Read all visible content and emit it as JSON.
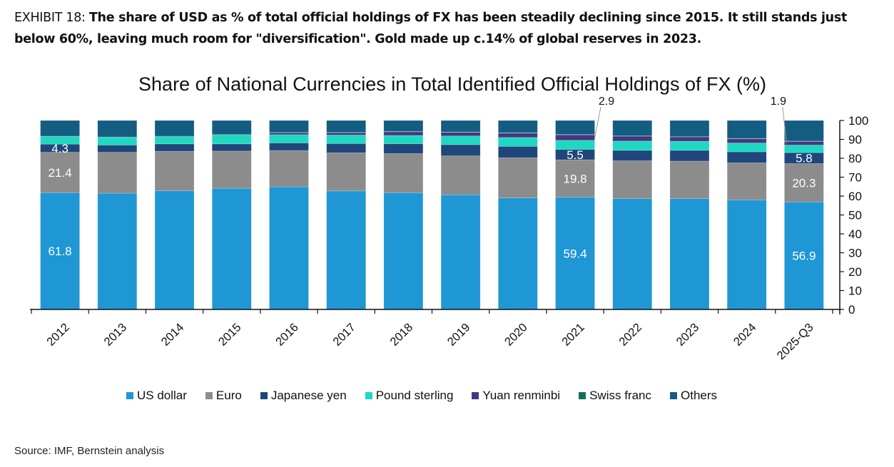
{
  "exhibit": {
    "label": "EXHIBIT 18: ",
    "headline": "The share of USD as % of total official holdings of FX has been steadily declining since 2015. It still stands just below 60%, leaving much room for \"diversification\". Gold made up c.14% of global reserves in 2023."
  },
  "source": "Source: IMF, Bernstein analysis",
  "colors": {
    "US dollar": "#1f97d4",
    "Euro": "#8c8c8c",
    "Japanese yen": "#1f477b",
    "Pound sterling": "#1fd8c2",
    "Yuan renminbi": "#46367f",
    "Swiss franc": "#12705a",
    "Others": "#135c82"
  },
  "chart_data": {
    "type": "bar",
    "stacked": true,
    "title": "Share of National Currencies in Total Identified Official Holdings of FX (%)",
    "xlabel": "",
    "ylabel": "",
    "ylim": [
      0,
      100
    ],
    "yticks": [
      0,
      10,
      20,
      30,
      40,
      50,
      60,
      70,
      80,
      90,
      100
    ],
    "y_axis_side": "right",
    "categories": [
      "2012",
      "2013",
      "2014",
      "2015",
      "2016",
      "2017",
      "2018",
      "2019",
      "2020",
      "2021",
      "2022",
      "2023",
      "2024",
      "2025-Q3"
    ],
    "series": [
      {
        "name": "US dollar",
        "values": [
          61.8,
          61.5,
          62.8,
          64.1,
          64.9,
          62.7,
          61.8,
          60.7,
          59.0,
          59.4,
          58.6,
          58.6,
          58.0,
          56.9
        ]
      },
      {
        "name": "Euro",
        "values": [
          21.4,
          21.7,
          20.9,
          19.7,
          19.2,
          20.2,
          20.7,
          20.6,
          21.3,
          19.8,
          20.1,
          19.9,
          19.6,
          20.3
        ]
      },
      {
        "name": "Japanese yen",
        "values": [
          4.3,
          3.8,
          3.9,
          3.8,
          4.0,
          4.9,
          5.2,
          5.9,
          6.0,
          5.5,
          5.5,
          5.7,
          5.8,
          5.8
        ]
      },
      {
        "name": "Pound sterling",
        "values": [
          4.0,
          4.0,
          3.8,
          4.7,
          4.4,
          4.5,
          4.4,
          4.6,
          4.7,
          4.8,
          4.9,
          4.8,
          4.7,
          4.0
        ]
      },
      {
        "name": "Yuan renminbi",
        "values": [
          0.0,
          0.0,
          0.0,
          0.0,
          1.0,
          1.2,
          1.9,
          1.9,
          2.3,
          2.9,
          2.6,
          2.3,
          2.2,
          1.9
        ]
      },
      {
        "name": "Swiss franc",
        "values": [
          0.2,
          0.3,
          0.3,
          0.3,
          0.2,
          0.2,
          0.2,
          0.2,
          0.2,
          0.2,
          0.2,
          0.2,
          0.2,
          0.2
        ]
      },
      {
        "name": "Others",
        "values": [
          8.3,
          8.7,
          8.3,
          7.4,
          6.3,
          6.3,
          5.8,
          6.1,
          6.5,
          7.4,
          8.1,
          8.5,
          9.5,
          10.9
        ]
      }
    ],
    "data_labels": [
      {
        "category": "2012",
        "series": "US dollar",
        "text": "61.8"
      },
      {
        "category": "2012",
        "series": "Euro",
        "text": "21.4"
      },
      {
        "category": "2012",
        "series": "Japanese yen",
        "text": "4.3"
      },
      {
        "category": "2021",
        "series": "US dollar",
        "text": "59.4"
      },
      {
        "category": "2021",
        "series": "Euro",
        "text": "19.8"
      },
      {
        "category": "2021",
        "series": "Japanese yen",
        "text": "5.5"
      },
      {
        "category": "2021",
        "series": "Yuan renminbi",
        "text": "2.9",
        "callout": true
      },
      {
        "category": "2025-Q3",
        "series": "US dollar",
        "text": "56.9"
      },
      {
        "category": "2025-Q3",
        "series": "Euro",
        "text": "20.3"
      },
      {
        "category": "2025-Q3",
        "series": "Japanese yen",
        "text": "5.8"
      },
      {
        "category": "2025-Q3",
        "series": "Yuan renminbi",
        "text": "1.9",
        "callout": true
      }
    ],
    "legend": [
      "US dollar",
      "Euro",
      "Japanese yen",
      "Pound sterling",
      "Yuan renminbi",
      "Swiss franc",
      "Others"
    ],
    "legend_position": "bottom",
    "grid": false
  }
}
